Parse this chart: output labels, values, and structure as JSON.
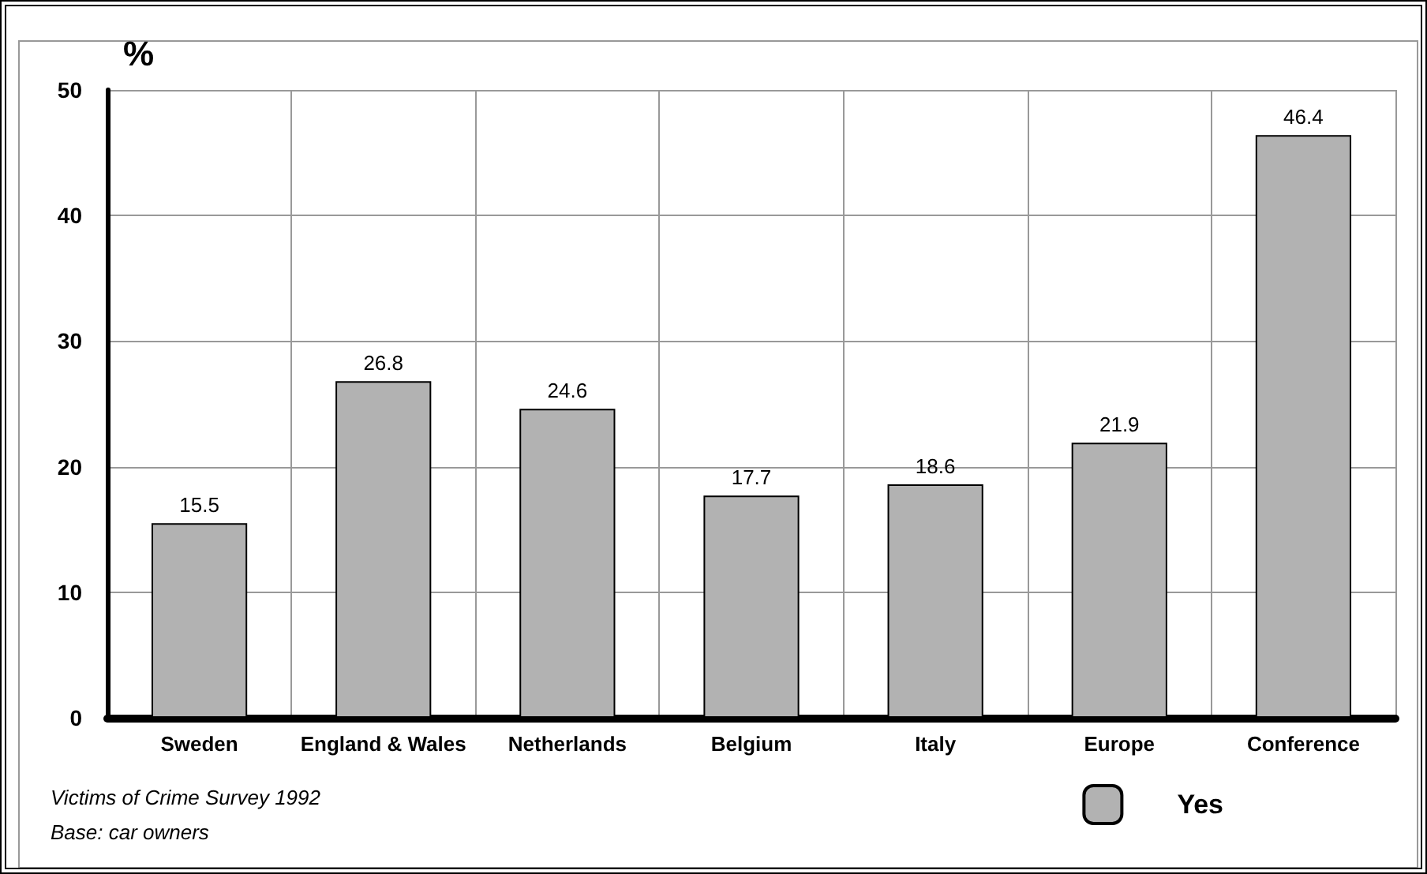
{
  "chart_data": {
    "type": "bar",
    "ylabel": "%",
    "categories": [
      "Sweden",
      "England & Wales",
      "Netherlands",
      "Belgium",
      "Italy",
      "Europe",
      "Conference"
    ],
    "series": [
      {
        "name": "Yes",
        "color": "#b2b2b2",
        "values": [
          15.5,
          26.8,
          24.6,
          17.7,
          18.6,
          21.9,
          46.4
        ]
      }
    ],
    "ylim": [
      0,
      50
    ],
    "yticks": [
      0,
      10,
      20,
      30,
      40,
      50
    ],
    "grid": true,
    "data_labels": true,
    "legend": "bottom right",
    "annotations": [
      "Victims of Crime Survey 1992",
      "Base: car owners"
    ]
  }
}
